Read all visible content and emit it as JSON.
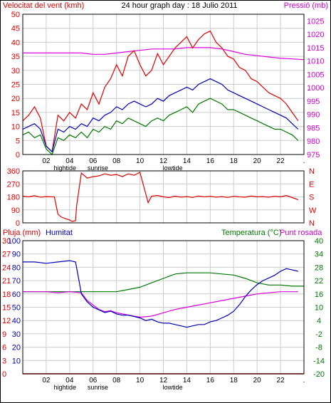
{
  "header": {
    "left_title": "Velocitat del vent (kmh)",
    "center_title": "24 hour graph day : 18 Julio 2011",
    "right_title": "Pressió (mb)"
  },
  "time_axis": {
    "ticks": [
      "02",
      "04",
      "06",
      "08",
      "10",
      "12",
      "14",
      "16",
      "18",
      "20",
      "22",
      "."
    ],
    "events": [
      {
        "label": "hightide",
        "hour": 3.6
      },
      {
        "label": "sunrise",
        "hour": 6.4
      },
      {
        "label": "lowtide",
        "hour": 12.8
      }
    ]
  },
  "colors": {
    "red": "#dd0000",
    "blue": "#0000bb",
    "green": "#007700",
    "magenta": "#dd00dd",
    "purple": "#cc00cc",
    "grid": "#cccccc",
    "frame": "#000000"
  },
  "bottom_header": {
    "rain_label": "Pluja (mm)",
    "humidity_label": "Humitat",
    "temp_label": "Temperatura (°C)",
    "dew_label": "Punt rosada"
  },
  "chart_data": [
    {
      "type": "line",
      "name": "wind",
      "x_unit": "hour",
      "xlim": [
        0,
        24
      ],
      "y_left": {
        "ticks": [
          0,
          5,
          10,
          15,
          20,
          25,
          30,
          35,
          40,
          45,
          50
        ],
        "ylim": [
          0,
          50
        ]
      },
      "y_right": {
        "ticks": [
          975,
          980,
          985,
          990,
          995,
          1000,
          1005,
          1010,
          1015,
          1020,
          1025
        ],
        "ylim": [
          975,
          1027.5
        ]
      },
      "series": [
        {
          "key": "gust",
          "color": "red",
          "axis": "left",
          "x": [
            0,
            0.5,
            1,
            1.5,
            2,
            2.5,
            3,
            3.5,
            4,
            4.5,
            5,
            5.5,
            6,
            6.5,
            7,
            7.5,
            8,
            8.5,
            9,
            9.5,
            10,
            10.5,
            11,
            11.5,
            12,
            12.5,
            13,
            13.5,
            14,
            14.5,
            15,
            15.5,
            16,
            16.5,
            17,
            17.5,
            18,
            18.5,
            19,
            19.5,
            20,
            20.5,
            21,
            21.5,
            22,
            22.5,
            23,
            23.5
          ],
          "y": [
            12,
            14,
            17,
            13,
            3,
            1,
            14,
            12,
            15,
            13,
            18,
            16,
            22,
            18,
            24,
            27,
            32,
            28,
            35,
            37,
            32,
            28,
            30,
            36,
            32,
            35,
            38,
            40,
            42,
            38,
            41,
            43,
            44,
            40,
            38,
            35,
            34,
            31,
            30,
            27,
            26,
            24,
            22,
            21,
            20,
            18,
            15,
            12
          ]
        },
        {
          "key": "avg",
          "color": "blue",
          "axis": "left",
          "x": [
            0,
            0.5,
            1,
            1.5,
            2,
            2.5,
            3,
            3.5,
            4,
            4.5,
            5,
            5.5,
            6,
            6.5,
            7,
            7.5,
            8,
            8.5,
            9,
            9.5,
            10,
            10.5,
            11,
            11.5,
            12,
            12.5,
            13,
            13.5,
            14,
            14.5,
            15,
            15.5,
            16,
            16.5,
            17,
            17.5,
            18,
            18.5,
            19,
            19.5,
            20,
            20.5,
            21,
            21.5,
            22,
            22.5,
            23,
            23.5
          ],
          "y": [
            9,
            10,
            11,
            9,
            3,
            1,
            9,
            8,
            10,
            9,
            11,
            10,
            13,
            12,
            14,
            15,
            17,
            16,
            18,
            19,
            18,
            17,
            18,
            20,
            19,
            21,
            22,
            23,
            24,
            23,
            25,
            26,
            27,
            26,
            25,
            23,
            22,
            21,
            20,
            19,
            18,
            17,
            16,
            15,
            14,
            13,
            11,
            9
          ]
        },
        {
          "key": "min",
          "color": "green",
          "axis": "left",
          "x": [
            0,
            0.5,
            1,
            1.5,
            2,
            2.5,
            3,
            3.5,
            4,
            4.5,
            5,
            5.5,
            6,
            6.5,
            7,
            7.5,
            8,
            8.5,
            9,
            9.5,
            10,
            10.5,
            11,
            11.5,
            12,
            12.5,
            13,
            13.5,
            14,
            14.5,
            15,
            15.5,
            16,
            16.5,
            17,
            17.5,
            18,
            18.5,
            19,
            19.5,
            20,
            20.5,
            21,
            21.5,
            22,
            22.5,
            23,
            23.5
          ],
          "y": [
            7,
            8,
            6,
            7,
            2,
            0,
            6,
            5,
            7,
            6,
            8,
            6,
            9,
            8,
            10,
            9,
            12,
            11,
            13,
            12,
            11,
            10,
            12,
            13,
            12,
            14,
            15,
            16,
            17,
            15,
            18,
            19,
            20,
            19,
            18,
            16,
            16,
            15,
            14,
            13,
            12,
            11,
            10,
            9,
            9,
            8,
            7,
            5
          ]
        },
        {
          "key": "pressure",
          "color": "magenta",
          "axis": "right",
          "x": [
            0,
            1,
            2,
            3,
            4,
            5,
            6,
            7,
            8,
            9,
            10,
            11,
            12,
            13,
            14,
            15,
            16,
            17,
            18,
            19,
            20,
            21,
            22,
            23,
            24
          ],
          "y": [
            1013,
            1013,
            1013,
            1013,
            1013,
            1013,
            1012.5,
            1012.5,
            1013,
            1013.5,
            1014,
            1014.5,
            1014.5,
            1014.5,
            1015,
            1015,
            1015,
            1014.5,
            1013.5,
            1012.5,
            1012,
            1011.5,
            1011,
            1010.8,
            1010.5
          ]
        }
      ]
    },
    {
      "type": "line",
      "name": "wind_direction",
      "x_unit": "hour",
      "xlim": [
        0,
        24
      ],
      "y_left": {
        "ticks": [
          0,
          90,
          180,
          270,
          360
        ],
        "ylim": [
          0,
          360
        ]
      },
      "y_right_labels": [
        "N",
        "W",
        "S",
        "E",
        "N"
      ],
      "series": [
        {
          "key": "direction",
          "color": "red",
          "x": [
            0,
            0.5,
            1,
            1.5,
            2,
            2.5,
            2.7,
            3,
            3.3,
            3.6,
            4,
            4.2,
            4.5,
            4.6,
            5,
            5.5,
            6,
            6.5,
            7,
            7.5,
            8,
            8.5,
            9,
            9.5,
            10,
            10.5,
            10.7,
            11,
            11.5,
            12,
            12.5,
            13,
            13.5,
            14,
            14.5,
            15,
            15.5,
            16,
            16.5,
            17,
            17.5,
            18,
            18.5,
            19,
            19.5,
            20,
            20.5,
            21,
            21.5,
            22,
            22.5,
            23,
            23.5
          ],
          "y": [
            185,
            180,
            188,
            178,
            182,
            180,
            180,
            60,
            40,
            30,
            20,
            10,
            15,
            120,
            345,
            310,
            320,
            325,
            340,
            330,
            335,
            320,
            340,
            330,
            350,
            200,
            140,
            185,
            190,
            180,
            175,
            185,
            178,
            182,
            176,
            186,
            180,
            184,
            178,
            182,
            176,
            184,
            180,
            178,
            186,
            180,
            182,
            178,
            184,
            180,
            190,
            175,
            160
          ]
        }
      ]
    },
    {
      "type": "line",
      "name": "rain_humidity_temperature",
      "x_unit": "hour",
      "xlim": [
        0,
        24
      ],
      "y_left_outer": {
        "label": "Pluja (mm)",
        "ticks": [
          0,
          3,
          6,
          9,
          12,
          15,
          18,
          21,
          24,
          27,
          30
        ],
        "ylim": [
          0,
          30
        ]
      },
      "y_left_inner": {
        "label": "Humitat",
        "ticks": [
          0,
          10,
          20,
          30,
          40,
          50,
          60,
          70,
          80,
          90,
          100
        ],
        "ylim": [
          0,
          100
        ]
      },
      "y_right": {
        "label": "Temperatura (°C)",
        "ticks": [
          -20,
          -14,
          -8,
          -2,
          4,
          10,
          16,
          22,
          28,
          34,
          40
        ],
        "ylim": [
          -20,
          40
        ]
      },
      "series": [
        {
          "key": "humidity",
          "color": "blue",
          "axis": "humidity",
          "x": [
            0,
            1,
            2,
            3,
            4,
            4.5,
            4.8,
            5,
            5.5,
            6,
            6.5,
            7,
            7.5,
            8,
            8.5,
            9,
            9.5,
            10,
            10.5,
            11,
            11.5,
            12,
            12.5,
            13,
            13.5,
            14,
            14.5,
            15,
            15.5,
            16,
            16.5,
            17,
            17.5,
            18,
            18.5,
            19,
            19.5,
            20,
            20.5,
            21,
            21.5,
            22,
            22.5,
            23,
            23.5
          ],
          "y": [
            84,
            84,
            83,
            84,
            85,
            84,
            70,
            60,
            54,
            50,
            48,
            46,
            47,
            45,
            44,
            44,
            43,
            42,
            40,
            41,
            39,
            38,
            38,
            37,
            36,
            35,
            36,
            37,
            37,
            39,
            40,
            42,
            44,
            47,
            52,
            58,
            63,
            67,
            70,
            72,
            74,
            77,
            79,
            78,
            77
          ]
        },
        {
          "key": "temperature",
          "color": "green",
          "axis": "temp",
          "x": [
            0,
            1,
            2,
            3,
            4,
            5,
            6,
            7,
            8,
            9,
            10,
            11,
            12,
            13,
            14,
            15,
            16,
            17,
            18,
            19,
            20,
            21,
            22,
            23,
            24
          ],
          "y": [
            17,
            17,
            17,
            17,
            17,
            17,
            17,
            17,
            17,
            18,
            19,
            21,
            23,
            25,
            25.5,
            25.5,
            25.5,
            25,
            24.5,
            23,
            21,
            20,
            20,
            19.5,
            19.5
          ]
        },
        {
          "key": "dew_point",
          "color": "magenta",
          "axis": "temp",
          "x": [
            0,
            1,
            2,
            3,
            4,
            5,
            5.5,
            6,
            6.5,
            7,
            7.5,
            8,
            8.5,
            9,
            9.5,
            10,
            11,
            12,
            13,
            14,
            15,
            16,
            17,
            18,
            19,
            20,
            21,
            22,
            23,
            23.5
          ],
          "y": [
            17,
            17,
            17,
            16.5,
            17,
            16.5,
            13,
            11,
            9,
            8,
            8.5,
            7.5,
            7,
            6.5,
            6,
            5.5,
            6,
            7.5,
            9,
            10,
            11,
            12,
            13,
            14,
            15,
            16,
            16.5,
            17,
            17,
            17
          ]
        },
        {
          "key": "rain",
          "color": "red",
          "axis": "rain",
          "x": [
            0,
            24
          ],
          "y": [
            0,
            0
          ]
        }
      ]
    }
  ]
}
